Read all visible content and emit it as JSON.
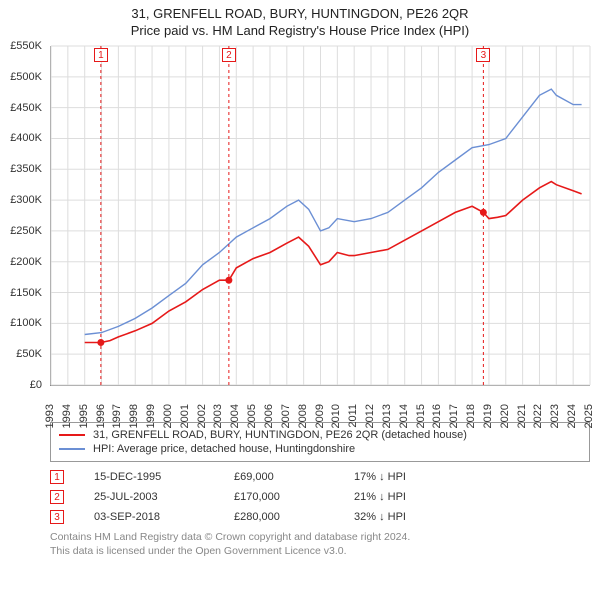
{
  "titles": {
    "main": "31, GRENFELL ROAD, BURY, HUNTINGDON, PE26 2QR",
    "sub": "Price paid vs. HM Land Registry's House Price Index (HPI)"
  },
  "chart": {
    "type": "line",
    "background_color": "#ffffff",
    "grid_color": "#dddddd",
    "axis_color": "#888888",
    "y_axis": {
      "min": 0,
      "max": 550000,
      "tick_step": 50000,
      "tick_prefix": "£",
      "tick_suffix_k": "K",
      "label_fontsize": 11,
      "label_color": "#333333"
    },
    "x_axis": {
      "min": 1993,
      "max": 2025,
      "tick_step": 1,
      "label_fontsize": 11,
      "label_color": "#333333",
      "rotation_deg": -90
    },
    "series": [
      {
        "id": "property",
        "label": "31, GRENFELL ROAD, BURY, HUNTINGDON, PE26 2QR (detached house)",
        "color": "#e61919",
        "line_width": 1.6,
        "data": [
          {
            "x": 1995.0,
            "y": 69000
          },
          {
            "x": 1995.96,
            "y": 69000
          },
          {
            "x": 1996.5,
            "y": 72000
          },
          {
            "x": 1997.0,
            "y": 78000
          },
          {
            "x": 1998.0,
            "y": 88000
          },
          {
            "x": 1999.0,
            "y": 100000
          },
          {
            "x": 2000.0,
            "y": 120000
          },
          {
            "x": 2001.0,
            "y": 135000
          },
          {
            "x": 2002.0,
            "y": 155000
          },
          {
            "x": 2003.0,
            "y": 170000
          },
          {
            "x": 2003.56,
            "y": 170000
          },
          {
            "x": 2004.0,
            "y": 190000
          },
          {
            "x": 2005.0,
            "y": 205000
          },
          {
            "x": 2006.0,
            "y": 215000
          },
          {
            "x": 2007.0,
            "y": 230000
          },
          {
            "x": 2007.7,
            "y": 240000
          },
          {
            "x": 2008.3,
            "y": 225000
          },
          {
            "x": 2009.0,
            "y": 195000
          },
          {
            "x": 2009.5,
            "y": 200000
          },
          {
            "x": 2010.0,
            "y": 215000
          },
          {
            "x": 2010.7,
            "y": 210000
          },
          {
            "x": 2011.0,
            "y": 210000
          },
          {
            "x": 2012.0,
            "y": 215000
          },
          {
            "x": 2013.0,
            "y": 220000
          },
          {
            "x": 2014.0,
            "y": 235000
          },
          {
            "x": 2015.0,
            "y": 250000
          },
          {
            "x": 2016.0,
            "y": 265000
          },
          {
            "x": 2017.0,
            "y": 280000
          },
          {
            "x": 2018.0,
            "y": 290000
          },
          {
            "x": 2018.67,
            "y": 280000
          },
          {
            "x": 2019.0,
            "y": 270000
          },
          {
            "x": 2019.5,
            "y": 272000
          },
          {
            "x": 2020.0,
            "y": 275000
          },
          {
            "x": 2021.0,
            "y": 300000
          },
          {
            "x": 2022.0,
            "y": 320000
          },
          {
            "x": 2022.7,
            "y": 330000
          },
          {
            "x": 2023.0,
            "y": 325000
          },
          {
            "x": 2024.0,
            "y": 315000
          },
          {
            "x": 2024.5,
            "y": 310000
          }
        ]
      },
      {
        "id": "hpi",
        "label": "HPI: Average price, detached house, Huntingdonshire",
        "color": "#6b8fd4",
        "line_width": 1.4,
        "data": [
          {
            "x": 1995.0,
            "y": 82000
          },
          {
            "x": 1996.0,
            "y": 85000
          },
          {
            "x": 1997.0,
            "y": 95000
          },
          {
            "x": 1998.0,
            "y": 108000
          },
          {
            "x": 1999.0,
            "y": 125000
          },
          {
            "x": 2000.0,
            "y": 145000
          },
          {
            "x": 2001.0,
            "y": 165000
          },
          {
            "x": 2002.0,
            "y": 195000
          },
          {
            "x": 2003.0,
            "y": 215000
          },
          {
            "x": 2004.0,
            "y": 240000
          },
          {
            "x": 2005.0,
            "y": 255000
          },
          {
            "x": 2006.0,
            "y": 270000
          },
          {
            "x": 2007.0,
            "y": 290000
          },
          {
            "x": 2007.7,
            "y": 300000
          },
          {
            "x": 2008.3,
            "y": 285000
          },
          {
            "x": 2009.0,
            "y": 250000
          },
          {
            "x": 2009.5,
            "y": 255000
          },
          {
            "x": 2010.0,
            "y": 270000
          },
          {
            "x": 2011.0,
            "y": 265000
          },
          {
            "x": 2012.0,
            "y": 270000
          },
          {
            "x": 2013.0,
            "y": 280000
          },
          {
            "x": 2014.0,
            "y": 300000
          },
          {
            "x": 2015.0,
            "y": 320000
          },
          {
            "x": 2016.0,
            "y": 345000
          },
          {
            "x": 2017.0,
            "y": 365000
          },
          {
            "x": 2018.0,
            "y": 385000
          },
          {
            "x": 2019.0,
            "y": 390000
          },
          {
            "x": 2020.0,
            "y": 400000
          },
          {
            "x": 2021.0,
            "y": 435000
          },
          {
            "x": 2022.0,
            "y": 470000
          },
          {
            "x": 2022.7,
            "y": 480000
          },
          {
            "x": 2023.0,
            "y": 470000
          },
          {
            "x": 2024.0,
            "y": 455000
          },
          {
            "x": 2024.5,
            "y": 455000
          }
        ]
      }
    ],
    "sale_markers": [
      {
        "n": "1",
        "x": 1995.96,
        "y": 69000
      },
      {
        "n": "2",
        "x": 2003.56,
        "y": 170000
      },
      {
        "n": "3",
        "x": 2018.67,
        "y": 280000
      }
    ],
    "marker_style": {
      "box_border_color": "#e61919",
      "box_text_color": "#e61919",
      "box_bg_color": "#ffffff",
      "box_fontsize": 10,
      "dashed_line_color": "#e61919",
      "dashed_line_dash": "3,3",
      "point_radius": 3.5
    }
  },
  "legend": {
    "border_color": "#999999",
    "fontsize": 11
  },
  "sales": [
    {
      "n": "1",
      "date": "15-DEC-1995",
      "price": "£69,000",
      "diff_pct": "17%",
      "diff_dir": "↓",
      "diff_suffix": "HPI"
    },
    {
      "n": "2",
      "date": "25-JUL-2003",
      "price": "£170,000",
      "diff_pct": "21%",
      "diff_dir": "↓",
      "diff_suffix": "HPI"
    },
    {
      "n": "3",
      "date": "03-SEP-2018",
      "price": "£280,000",
      "diff_pct": "32%",
      "diff_dir": "↓",
      "diff_suffix": "HPI"
    }
  ],
  "attribution": {
    "line1": "Contains HM Land Registry data © Crown copyright and database right 2024.",
    "line2": "This data is licensed under the Open Government Licence v3.0."
  }
}
